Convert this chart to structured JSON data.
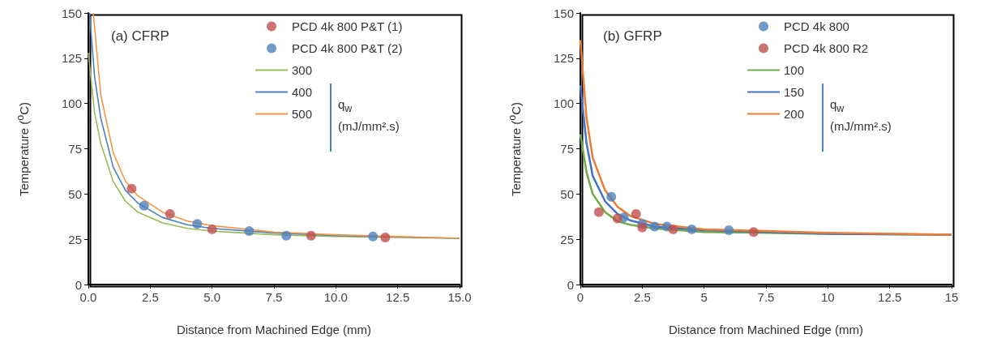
{
  "chart_data": [
    {
      "type": "line",
      "annotations": [
        "(a) CFRP"
      ],
      "xlabel": "Distance from Machined Edge (mm)",
      "ylabel": "Temperature ($^{o}$C)",
      "legend_title": "q$_{w}$ (mJ/mm².s)",
      "legend": "top right",
      "grid": false,
      "xlim": [
        0,
        15
      ],
      "xticks": [
        {
          "value": 0,
          "label": "0.0"
        },
        {
          "value": 2.5,
          "label": "2.5"
        },
        {
          "value": 5,
          "label": "5.0"
        },
        {
          "value": 7.5,
          "label": "7.5"
        },
        {
          "value": 10,
          "label": "10.0"
        },
        {
          "value": 12.5,
          "label": "12.5"
        },
        {
          "value": 15,
          "label": "15.0"
        }
      ],
      "ylim": [
        0,
        150
      ],
      "yticks": [
        0,
        25,
        50,
        75,
        100,
        125,
        150
      ],
      "series": [
        {
          "name": "PCD 4k 800 P&T (1)",
          "type": "scatter",
          "marker": "circle",
          "color": "#c0504d",
          "x": [
            1.75,
            3.3,
            5,
            9,
            12
          ],
          "values": [
            53,
            39,
            30.5,
            27,
            26
          ]
        },
        {
          "name": "PCD 4k 800 P&T (2)",
          "type": "scatter",
          "marker": "circle",
          "color": "#4f81bd",
          "x": [
            2.25,
            4.4,
            6.5,
            8,
            11.5
          ],
          "values": [
            43.5,
            33.5,
            29.5,
            27,
            26.5
          ]
        },
        {
          "name": "300",
          "marker": "none",
          "color": "#9bbb59",
          "x": [
            0,
            0.25,
            0.5,
            1,
            1.5,
            2,
            3,
            4,
            5,
            7.5,
            10,
            15
          ],
          "values": [
            128,
            95,
            78,
            57,
            46,
            40,
            34,
            31,
            29.5,
            27.5,
            26.5,
            25.5
          ]
        },
        {
          "name": "400",
          "marker": "none",
          "color": "#4f81bd",
          "x": [
            0.05,
            0.25,
            0.5,
            1,
            1.5,
            2,
            3,
            4,
            5,
            7.5,
            10,
            15
          ],
          "values": [
            150,
            115,
            92,
            65,
            52,
            45,
            37,
            33,
            31,
            28.5,
            27,
            25.5
          ]
        },
        {
          "name": "500",
          "marker": "none",
          "color": "#f79646",
          "x": [
            0.2,
            0.5,
            1,
            1.5,
            2,
            3,
            4,
            5,
            7.5,
            10,
            15
          ],
          "values": [
            150,
            105,
            73,
            57,
            49,
            40,
            35,
            32.5,
            29,
            27.5,
            25.5
          ]
        }
      ]
    },
    {
      "type": "line",
      "annotations": [
        "(b) GFRP"
      ],
      "xlabel": "Distance from Machined Edge (mm)",
      "ylabel": "Temperature ($^{o}$C)",
      "legend_title": "q$_{w}$ (mJ/mm².s)",
      "legend": "top right",
      "grid": false,
      "xlim": [
        0,
        15
      ],
      "xticks": [
        0,
        2.5,
        5,
        7.5,
        10,
        12.5,
        15
      ],
      "ylim": [
        0,
        150
      ],
      "yticks": [
        0,
        25,
        50,
        75,
        100,
        125,
        150
      ],
      "series": [
        {
          "name": "PCD 4k 800",
          "type": "scatter",
          "marker": "circle",
          "color": "#4f81bd",
          "x": [
            1.25,
            1.75,
            2.5,
            3,
            3.5,
            4.5,
            6
          ],
          "values": [
            48.5,
            37,
            33.5,
            32,
            32,
            30.5,
            30
          ]
        },
        {
          "name": "PCD 4k 800 R2",
          "type": "scatter",
          "marker": "circle",
          "color": "#c0504d",
          "x": [
            0.75,
            1.5,
            2.25,
            2.5,
            3.75,
            7
          ],
          "values": [
            40,
            36.5,
            39,
            31.5,
            30.5,
            29
          ]
        },
        {
          "name": "100",
          "marker": "none",
          "color": "#70ad47",
          "x": [
            0,
            0.25,
            0.5,
            1,
            1.5,
            2,
            3,
            5,
            7.5,
            10,
            15
          ],
          "values": [
            83,
            62,
            50,
            40,
            35,
            33,
            31,
            29,
            28.5,
            28,
            27.5
          ]
        },
        {
          "name": "150",
          "marker": "none",
          "color": "#4472c4",
          "x": [
            0,
            0.25,
            0.5,
            1,
            1.5,
            2,
            3,
            5,
            7.5,
            10,
            15
          ],
          "values": [
            110,
            78,
            60,
            46,
            39,
            35.5,
            32,
            30,
            29,
            28,
            27.5
          ]
        },
        {
          "name": "200",
          "marker": "none",
          "color": "#ed7d31",
          "x": [
            0,
            0.25,
            0.5,
            1,
            1.5,
            2,
            3,
            5,
            7.5,
            10,
            15
          ],
          "values": [
            135,
            92,
            70,
            52,
            43,
            38,
            33.5,
            30.5,
            29.5,
            28.5,
            27.5
          ]
        }
      ]
    }
  ]
}
